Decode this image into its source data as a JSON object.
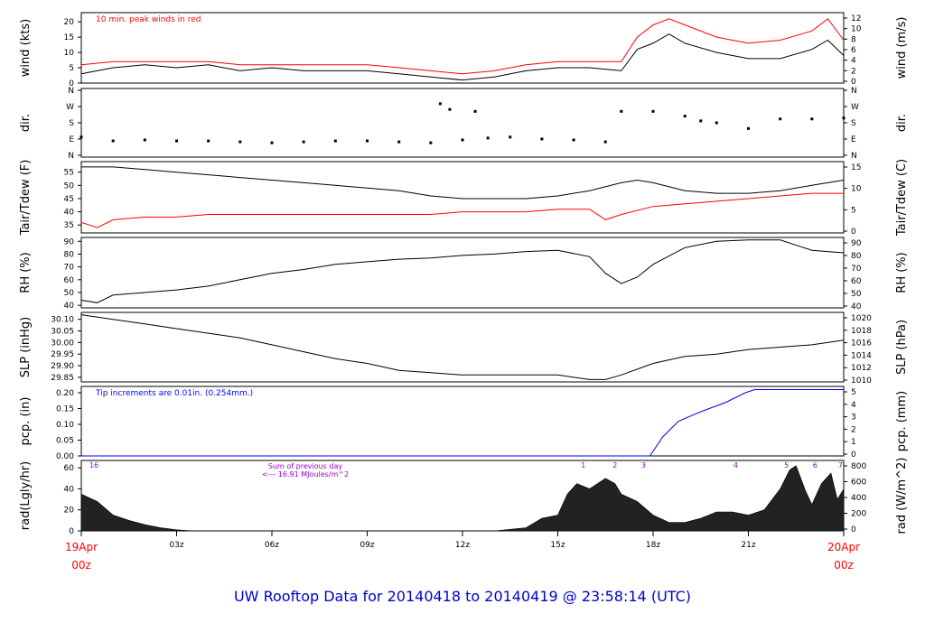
{
  "title": "UW Rooftop Data for 20140418  to  20140419 @ 23:58:14  (UTC)",
  "time_axis": {
    "start_top": "19Apr",
    "start_bottom": "00z",
    "end_top": "20Apr",
    "end_bottom": "00z",
    "ticks": [
      "03z",
      "06z",
      "09z",
      "12z",
      "15z",
      "18z",
      "21z"
    ],
    "range_hours": [
      0,
      24
    ]
  },
  "colors": {
    "black": "#000000",
    "red": "#ff0000",
    "blue": "#0000ff",
    "purple": "#9900cc",
    "title": "#0000cc"
  },
  "chart_data": [
    {
      "id": "wind",
      "type": "line",
      "left_label": "wind (kts)",
      "right_label": "wind (m/s)",
      "annotation": "10 min. peak winds in red",
      "left_ticks": [
        "0",
        "5",
        "10",
        "15",
        "20"
      ],
      "left_range": [
        0,
        23
      ],
      "right_ticks": [
        "0",
        "2",
        "4",
        "6",
        "8",
        "10",
        "12"
      ],
      "series": [
        {
          "name": "wind speed",
          "x": [
            0,
            1,
            2,
            3,
            4,
            5,
            6,
            7,
            8,
            9,
            10,
            11,
            12,
            13,
            14,
            15,
            16,
            17,
            17.5,
            18,
            18.5,
            19,
            20,
            21,
            22,
            23,
            23.5,
            24
          ],
          "y": [
            3,
            5,
            6,
            5,
            6,
            4,
            5,
            4,
            4,
            4,
            3,
            2,
            1,
            2,
            4,
            5,
            5,
            4,
            11,
            13,
            16,
            13,
            10,
            8,
            8,
            11,
            14,
            9
          ]
        },
        {
          "name": "10 min. peak winds",
          "x": [
            0,
            1,
            2,
            3,
            4,
            5,
            6,
            7,
            8,
            9,
            10,
            11,
            12,
            13,
            14,
            15,
            16,
            17,
            17.5,
            18,
            18.5,
            19,
            20,
            21,
            22,
            23,
            23.5,
            24
          ],
          "y": [
            6,
            7,
            7,
            7,
            7,
            6,
            6,
            6,
            6,
            6,
            5,
            4,
            3,
            4,
            6,
            7,
            7,
            7,
            15,
            19,
            21,
            19,
            15,
            13,
            14,
            17,
            21,
            14
          ]
        }
      ]
    },
    {
      "id": "dir",
      "type": "scatter",
      "left_label": "dir.",
      "right_label": "dir.",
      "left_ticks": [
        "N",
        "E",
        "S",
        "W",
        "N"
      ],
      "right_ticks": [
        "N",
        "E",
        "S",
        "W",
        "N"
      ],
      "left_range": [
        0,
        360
      ],
      "series": [
        {
          "name": "wind direction",
          "x": [
            0,
            1,
            2,
            3,
            4,
            5,
            6,
            7,
            8,
            9,
            10,
            11,
            11.3,
            11.6,
            12,
            12.4,
            12.8,
            13.5,
            14.5,
            15.5,
            16.5,
            17,
            18,
            19,
            19.5,
            20,
            21,
            22,
            23,
            24
          ],
          "y": [
            105,
            85,
            90,
            85,
            85,
            80,
            75,
            80,
            85,
            85,
            80,
            75,
            280,
            250,
            90,
            240,
            100,
            105,
            95,
            90,
            80,
            240,
            240,
            215,
            190,
            180,
            150,
            200,
            200,
            205
          ]
        }
      ]
    },
    {
      "id": "temp",
      "type": "line",
      "left_label": "Tair/Tdew (F)",
      "right_label": "Tair/Tdew (C)",
      "left_ticks": [
        "35",
        "40",
        "45",
        "50",
        "55"
      ],
      "left_range": [
        32,
        59
      ],
      "right_ticks": [
        "0",
        "5",
        "10",
        "15"
      ],
      "series": [
        {
          "name": "Tair",
          "x": [
            0,
            1,
            2,
            3,
            4,
            5,
            6,
            7,
            8,
            9,
            10,
            11,
            12,
            13,
            14,
            15,
            16,
            17,
            17.5,
            18,
            19,
            20,
            21,
            22,
            23,
            24
          ],
          "y": [
            57,
            57,
            56,
            55,
            54,
            53,
            52,
            51,
            50,
            49,
            48,
            46,
            45,
            45,
            45,
            46,
            48,
            51,
            52,
            51,
            48,
            47,
            47,
            48,
            50,
            52
          ]
        },
        {
          "name": "Tdew",
          "x": [
            0,
            0.5,
            1,
            2,
            3,
            4,
            5,
            6,
            7,
            8,
            9,
            10,
            11,
            12,
            13,
            14,
            15,
            16,
            16.5,
            17,
            18,
            19,
            20,
            21,
            22,
            23,
            24
          ],
          "y": [
            36,
            34,
            37,
            38,
            38,
            39,
            39,
            39,
            39,
            39,
            39,
            39,
            39,
            40,
            40,
            40,
            41,
            41,
            37,
            39,
            42,
            43,
            44,
            45,
            46,
            47,
            47
          ]
        }
      ]
    },
    {
      "id": "rh",
      "type": "line",
      "left_label": "RH (%)",
      "right_label": "RH (%)",
      "left_ticks": [
        "40",
        "50",
        "60",
        "70",
        "80",
        "90"
      ],
      "left_range": [
        38,
        93
      ],
      "right_ticks": [
        "40",
        "50",
        "60",
        "70",
        "80",
        "90"
      ],
      "series": [
        {
          "name": "RH",
          "x": [
            0,
            0.5,
            1,
            2,
            3,
            4,
            5,
            6,
            7,
            8,
            9,
            10,
            11,
            12,
            13,
            14,
            15,
            16,
            16.5,
            17,
            17.5,
            18,
            19,
            20,
            21,
            22,
            23,
            24
          ],
          "y": [
            44,
            42,
            48,
            50,
            52,
            55,
            60,
            65,
            68,
            72,
            74,
            76,
            77,
            79,
            80,
            82,
            83,
            78,
            65,
            57,
            62,
            72,
            85,
            90,
            91,
            91,
            83,
            81
          ]
        }
      ]
    },
    {
      "id": "slp",
      "type": "line",
      "left_label": "SLP (inHg)",
      "right_label": "SLP (hPa)",
      "left_ticks": [
        "29.85",
        "29.90",
        "29.95",
        "30.00",
        "30.05",
        "30.10"
      ],
      "left_range": [
        29.83,
        30.13
      ],
      "right_ticks": [
        "1010",
        "1012",
        "1014",
        "1016",
        "1018",
        "1020"
      ],
      "series": [
        {
          "name": "SLP",
          "x": [
            0,
            1,
            2,
            3,
            4,
            5,
            6,
            7,
            8,
            9,
            10,
            11,
            12,
            13,
            14,
            15,
            16,
            16.5,
            17,
            18,
            19,
            20,
            21,
            22,
            23,
            24
          ],
          "y": [
            30.12,
            30.1,
            30.08,
            30.06,
            30.04,
            30.02,
            29.99,
            29.96,
            29.93,
            29.91,
            29.88,
            29.87,
            29.86,
            29.86,
            29.86,
            29.86,
            29.84,
            29.84,
            29.86,
            29.91,
            29.94,
            29.95,
            29.97,
            29.98,
            29.99,
            30.01
          ]
        }
      ]
    },
    {
      "id": "pcp",
      "type": "line",
      "left_label": "pcp. (in)",
      "right_label": "pcp. (mm)",
      "annotation": "Tip increments are 0.01in. (0.254mm.)",
      "left_ticks": [
        "0.00",
        "0.05",
        "0.10",
        "0.15",
        "0.20"
      ],
      "left_range": [
        0,
        0.22
      ],
      "right_ticks": [
        "0",
        "1",
        "2",
        "3",
        "4",
        "5"
      ],
      "series": [
        {
          "name": "accumulated precipitation",
          "x": [
            0,
            17.9,
            18.3,
            18.8,
            19.5,
            20.3,
            20.9,
            21.2,
            24
          ],
          "y": [
            0,
            0,
            0.06,
            0.11,
            0.14,
            0.17,
            0.2,
            0.21,
            0.21
          ]
        }
      ]
    },
    {
      "id": "rad",
      "type": "area",
      "left_label": "rad(Lgly/hr)",
      "right_label": "rad (W/m^2)",
      "annotation_line1": "Sum of previous day",
      "annotation_line2": "<--- 16.91 MJoules/m^2",
      "left_ticks": [
        "0",
        "20",
        "40",
        "60"
      ],
      "left_range": [
        0,
        67
      ],
      "right_ticks": [
        "0",
        "200",
        "400",
        "600",
        "800"
      ],
      "hour_markers": [
        {
          "label": "16",
          "x": 0.4
        },
        {
          "label": "1",
          "x": 15.8
        },
        {
          "label": "2",
          "x": 16.8
        },
        {
          "label": "3",
          "x": 17.7
        },
        {
          "label": "4",
          "x": 20.6
        },
        {
          "label": "5",
          "x": 22.2
        },
        {
          "label": "6",
          "x": 23.1
        },
        {
          "label": "7",
          "x": 23.9
        }
      ],
      "series": [
        {
          "name": "solar radiation",
          "x": [
            0,
            0.5,
            1,
            1.5,
            2,
            2.5,
            3,
            3.5,
            4,
            13,
            14,
            14.5,
            15,
            15.3,
            15.6,
            16,
            16.5,
            16.8,
            17,
            17.5,
            18,
            18.5,
            19,
            19.5,
            20,
            20.5,
            21,
            21.5,
            22,
            22.3,
            22.5,
            22.8,
            23,
            23.3,
            23.6,
            23.8,
            24
          ],
          "y": [
            35,
            28,
            15,
            10,
            6,
            3,
            1,
            0,
            0,
            0,
            3,
            12,
            15,
            35,
            45,
            40,
            50,
            45,
            35,
            28,
            15,
            8,
            8,
            12,
            18,
            18,
            15,
            20,
            40,
            58,
            62,
            38,
            25,
            45,
            55,
            30,
            40
          ]
        }
      ]
    }
  ]
}
